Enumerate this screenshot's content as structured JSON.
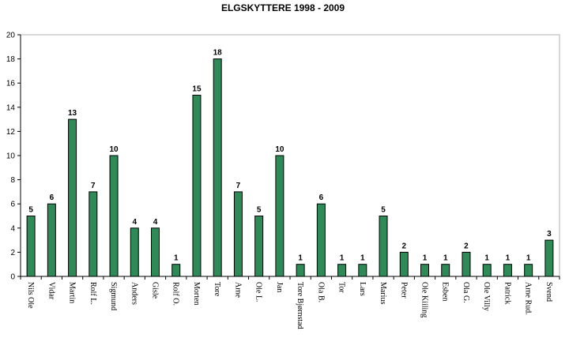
{
  "chart_data": {
    "type": "bar",
    "title": "ELGSKYTTERE  1998 - 2009",
    "xlabel": "",
    "ylabel": "",
    "categories": [
      "Nils Ole",
      "Vidar",
      "Martin",
      "Rolf L.",
      "Sigmund",
      "Anders",
      "Gisle",
      "Rolf O.",
      "Morten",
      "Tore",
      "Arne",
      "Ole L.",
      "Jan",
      "Tore Bjørnstad",
      "Ola B.",
      "Tor",
      "Lars",
      "Marius",
      "Peter",
      "Ole Kiiling",
      "Esben",
      "Ola G.",
      "Ole Villy",
      "Patrick",
      "Arne Rud.",
      "Svend"
    ],
    "values": [
      5,
      6,
      13,
      7,
      10,
      4,
      4,
      1,
      15,
      18,
      7,
      5,
      10,
      1,
      6,
      1,
      1,
      5,
      2,
      1,
      1,
      2,
      1,
      1,
      1,
      3
    ],
    "ylim": [
      0,
      20
    ],
    "yticks": [
      0,
      2,
      4,
      6,
      8,
      10,
      12,
      14,
      16,
      18,
      20
    ],
    "grid": false,
    "legend": "none",
    "bar_color": "#2e8b57",
    "show_data_labels": true
  }
}
